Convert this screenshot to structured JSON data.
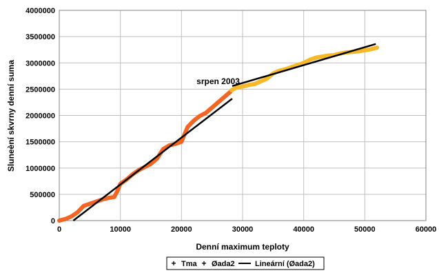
{
  "chart_data": {
    "type": "scatter",
    "xlabel": "Denní maximum teploty",
    "ylabel": "Sluneèní skvrny denní suma",
    "xlim": [
      0,
      60000
    ],
    "ylim": [
      0,
      4000000
    ],
    "x_ticks": [
      "0",
      "10000",
      "20000",
      "30000",
      "40000",
      "50000",
      "60000"
    ],
    "y_ticks": [
      "0",
      "500000",
      "1000000",
      "1500000",
      "2000000",
      "2500000",
      "3000000",
      "3500000",
      "4000000"
    ],
    "grid": true,
    "legend_position": "bottom",
    "annotations": [
      {
        "text": "srpen 2003",
        "x": 26000,
        "y": 2650000
      }
    ],
    "series": [
      {
        "name": "Tma",
        "color": "#f26522",
        "marker": "plus",
        "x": [
          0,
          1000,
          2000,
          3000,
          4000,
          5000,
          6000,
          7000,
          8000,
          9000,
          9500,
          10000,
          11000,
          12000,
          13000,
          14000,
          15000,
          16000,
          17000,
          18000,
          19000,
          20000,
          21000,
          22000,
          23000,
          24000,
          25000,
          26000,
          27000,
          28000
        ],
        "y": [
          0,
          30000,
          80000,
          160000,
          280000,
          320000,
          360000,
          400000,
          430000,
          450000,
          560000,
          700000,
          780000,
          880000,
          960000,
          1020000,
          1080000,
          1180000,
          1360000,
          1430000,
          1460000,
          1500000,
          1780000,
          1900000,
          1990000,
          2050000,
          2150000,
          2250000,
          2350000,
          2450000
        ]
      },
      {
        "name": "Øada2",
        "color": "#f7b928",
        "marker": "plus",
        "x": [
          28200,
          29000,
          30000,
          31000,
          32000,
          33000,
          34000,
          35000,
          36000,
          37000,
          38000,
          39000,
          40000,
          41000,
          42000,
          43000,
          44000,
          45000,
          46000,
          47000,
          48000,
          49000,
          50000,
          51000,
          52000
        ],
        "y": [
          2480000,
          2530000,
          2550000,
          2580000,
          2600000,
          2650000,
          2700000,
          2800000,
          2850000,
          2880000,
          2920000,
          2960000,
          3000000,
          3060000,
          3100000,
          3120000,
          3140000,
          3150000,
          3180000,
          3200000,
          3210000,
          3220000,
          3240000,
          3260000,
          3290000
        ]
      },
      {
        "name": "Lineární (Øada2)",
        "color": "#000000",
        "type": "line",
        "segments": [
          {
            "x": [
              2300,
              28300
            ],
            "y": [
              0,
              2320000
            ]
          },
          {
            "x": [
              28300,
              51800
            ],
            "y": [
              2560000,
              3360000
            ]
          }
        ]
      }
    ]
  }
}
